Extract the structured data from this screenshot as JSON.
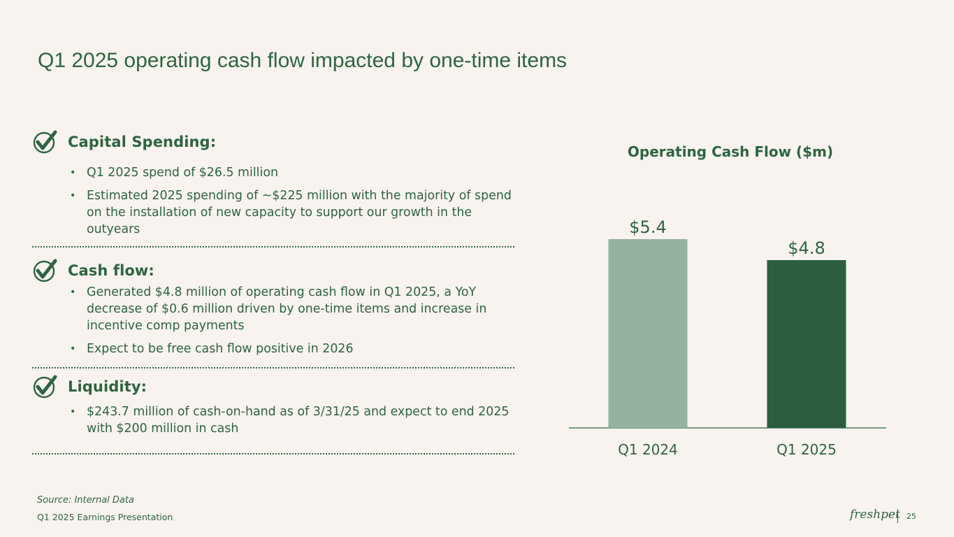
{
  "slide": {
    "title": "Q1 2025 operating cash flow impacted by one-time items",
    "source": "Source: Internal Data",
    "footer": "Q1 2025 Earnings Presentation",
    "logo_text": "freshpet",
    "page_number": "25"
  },
  "sections": [
    {
      "title": "Capital Spending:",
      "bullets": [
        "Q1 2025 spend of $26.5 million",
        "Estimated 2025 spending of ~$225 million with the majority of spend on the installation of new capacity to support our growth in the outyears"
      ]
    },
    {
      "title": "Cash flow:",
      "bullets": [
        "Generated $4.8 million of operating cash flow in Q1 2025, a YoY decrease of $0.6 million driven by one-time items and increase in incentive comp payments",
        "Expect to be free cash flow positive in 2026"
      ]
    },
    {
      "title": "Liquidity:",
      "bullets": [
        "$243.7 million of cash-on-hand as of 3/31/25 and expect to end 2025 with $200 million in cash"
      ]
    }
  ],
  "colors": {
    "background": "#f8f3ef",
    "dark_green": "#2a5e3f",
    "light_green": "#95b1a0",
    "text_green": "#2e6440"
  },
  "chart_data": {
    "type": "bar",
    "title": "Operating Cash Flow ($m)",
    "categories": [
      "Q1 2024",
      "Q1 2025"
    ],
    "values": [
      5.4,
      4.8
    ],
    "data_labels": [
      "$5.4",
      "$4.8"
    ],
    "bar_colors": [
      "#95b1a0",
      "#2a5e3f"
    ],
    "xlabel": "",
    "ylabel": "",
    "ylim": [
      0,
      6
    ],
    "grid": false,
    "legend": "none"
  }
}
